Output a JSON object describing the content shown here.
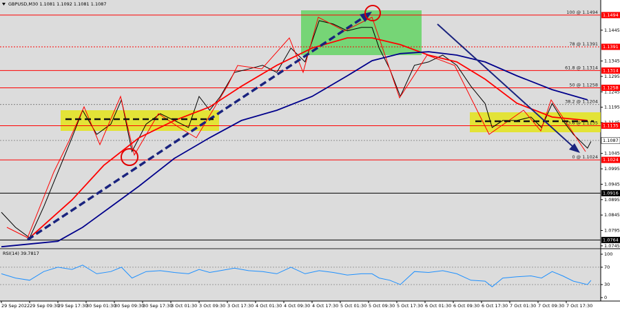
{
  "chart_data": {
    "type": "line",
    "title": "GBPUSD,M30 1.1081 1.1092 1.1081 1.1087",
    "xlim": [
      0,
      170
    ],
    "xticks": [
      {
        "value": 0,
        "label": "29 Sep 2022"
      },
      {
        "value": 8,
        "label": "29 Sep 09:30"
      },
      {
        "value": 16,
        "label": "29 Sep 17:30"
      },
      {
        "value": 24,
        "label": "30 Sep 01:30"
      },
      {
        "value": 32,
        "label": "30 Sep 09:30"
      },
      {
        "value": 40,
        "label": "30 Sep 17:30"
      },
      {
        "value": 48,
        "label": "3 Oct 01:30"
      },
      {
        "value": 56,
        "label": "3 Oct 09:30"
      },
      {
        "value": 64,
        "label": "3 Oct 17:30"
      },
      {
        "value": 72,
        "label": "4 Oct 01:30"
      },
      {
        "value": 80,
        "label": "4 Oct 09:30"
      },
      {
        "value": 88,
        "label": "4 Oct 17:30"
      },
      {
        "value": 96,
        "label": "5 Oct 01:30"
      },
      {
        "value": 104,
        "label": "5 Oct 09:30"
      },
      {
        "value": 112,
        "label": "5 Oct 17:30"
      },
      {
        "value": 120,
        "label": "6 Oct 01:30"
      },
      {
        "value": 128,
        "label": "6 Oct 09:30"
      },
      {
        "value": 136,
        "label": "6 Oct 17:30"
      },
      {
        "value": 144,
        "label": "7 Oct 01:30"
      },
      {
        "value": 152,
        "label": "7 Oct 09:30"
      },
      {
        "value": 160,
        "label": "7 Oct 17:30"
      }
    ],
    "ylim": [
      1.0738,
      1.1543
    ],
    "yticks": [
      1.0745,
      1.0795,
      1.0845,
      1.0895,
      1.0945,
      1.0995,
      1.1045,
      1.1145,
      1.1195,
      1.1245,
      1.1295,
      1.1345,
      1.1445
    ],
    "series": [
      {
        "color": "#000000",
        "x": [
          0,
          4,
          8,
          12,
          16,
          20,
          23,
          27,
          31,
          34,
          37,
          41,
          45,
          49,
          53,
          56,
          59,
          62,
          66,
          70,
          74,
          78,
          82,
          86,
          90,
          94,
          98,
          102,
          105,
          107,
          110,
          113,
          117,
          121,
          125,
          129,
          133,
          137,
          139,
          142,
          146,
          150,
          153,
          156,
          159,
          162,
          166,
          167
        ],
        "values": [
          1.0854,
          1.0805,
          1.0771,
          1.0872,
          1.0984,
          1.1096,
          1.1185,
          1.1107,
          1.114,
          1.1219,
          1.1051,
          1.114,
          1.1174,
          1.1152,
          1.1129,
          1.123,
          1.1185,
          1.123,
          1.1308,
          1.1319,
          1.1331,
          1.1308,
          1.1387,
          1.1342,
          1.1476,
          1.1465,
          1.1443,
          1.1454,
          1.1454,
          1.1387,
          1.1319,
          1.123,
          1.1331,
          1.1342,
          1.1364,
          1.1331,
          1.1263,
          1.1207,
          1.1129,
          1.1152,
          1.1152,
          1.1163,
          1.1129,
          1.1207,
          1.1152,
          1.1107,
          1.1062,
          1.1084
        ]
      },
      {
        "color": "#ff0000",
        "x": [
          8,
          20,
          29,
          39,
          49,
          59,
          68,
          78,
          88,
          98,
          105,
          113,
          121,
          129,
          137,
          146,
          156,
          166
        ],
        "values": [
          1.0771,
          1.0894,
          1.1006,
          1.1096,
          1.1152,
          1.1196,
          1.1263,
          1.1331,
          1.1387,
          1.142,
          1.142,
          1.1398,
          1.1364,
          1.1342,
          1.1286,
          1.1208,
          1.1163,
          1.1152
        ]
      },
      {
        "color": "#00008b",
        "x": [
          0,
          16,
          23,
          31,
          39,
          49,
          59,
          68,
          78,
          88,
          98,
          105,
          113,
          121,
          129,
          137,
          146,
          156,
          166
        ],
        "values": [
          1.0742,
          1.076,
          1.0805,
          1.0872,
          1.0939,
          1.1029,
          1.1096,
          1.1152,
          1.1185,
          1.123,
          1.1297,
          1.1346,
          1.1369,
          1.1375,
          1.1364,
          1.1342,
          1.1297,
          1.1252,
          1.1219
        ]
      }
    ],
    "levels": [
      {
        "value": 1.1494,
        "label": "100 @ 1.1494",
        "color": "#ff0000",
        "style": "solid",
        "box": "#ff0000"
      },
      {
        "value": 1.1391,
        "label": "78 @ 1.1391",
        "color": "#ff0000",
        "style": "dotted",
        "box": "#ff0000"
      },
      {
        "value": 1.1314,
        "label": "61.8 @ 1.1314",
        "color": "#ff0000",
        "style": "solid",
        "box": "#ff0000"
      },
      {
        "value": 1.1258,
        "label": "50 @ 1.1258",
        "color": "#ff0000",
        "style": "solid",
        "box": "#ff0000"
      },
      {
        "value": 1.1204,
        "label": "38.2 @ 1.1204",
        "color": "#808080",
        "style": "dotted"
      },
      {
        "value": 1.1135,
        "label": "23.6 @ 1.1135",
        "color": "#ff0000",
        "style": "solid",
        "box": "#ff0000"
      },
      {
        "value": 1.1024,
        "label": "0 @ 1.1024",
        "color": "#ff0000",
        "style": "solid",
        "box": "#ff0000"
      },
      {
        "value": 1.1087,
        "color": "#909090",
        "style": "dotted",
        "box": "#ffffff"
      },
      {
        "value": 1.0916,
        "color": "#000000",
        "style": "solid",
        "box": "#000000"
      },
      {
        "value": 1.0764,
        "color": "#000000",
        "style": "solid",
        "box": "#000000"
      }
    ],
    "rsi": {
      "label": "RSI(14) 39.7817",
      "color": "#1e90ff",
      "ylim": [
        0,
        100
      ],
      "yticks": [
        0,
        30,
        70,
        100
      ],
      "levels": [
        30,
        70
      ],
      "x": [
        0,
        4,
        8,
        12,
        16,
        20,
        23,
        27,
        31,
        34,
        37,
        41,
        45,
        49,
        53,
        56,
        59,
        62,
        66,
        70,
        74,
        78,
        82,
        86,
        90,
        94,
        98,
        102,
        105,
        107,
        110,
        113,
        117,
        121,
        125,
        129,
        133,
        137,
        139,
        142,
        146,
        150,
        153,
        156,
        159,
        162,
        166,
        167
      ],
      "values": [
        55,
        45,
        40,
        60,
        70,
        65,
        75,
        55,
        60,
        70,
        45,
        60,
        62,
        58,
        55,
        65,
        58,
        62,
        68,
        62,
        60,
        55,
        70,
        55,
        62,
        58,
        52,
        55,
        55,
        45,
        40,
        30,
        60,
        58,
        62,
        55,
        40,
        38,
        25,
        45,
        48,
        50,
        45,
        60,
        50,
        38,
        30,
        39.7817
      ]
    }
  }
}
